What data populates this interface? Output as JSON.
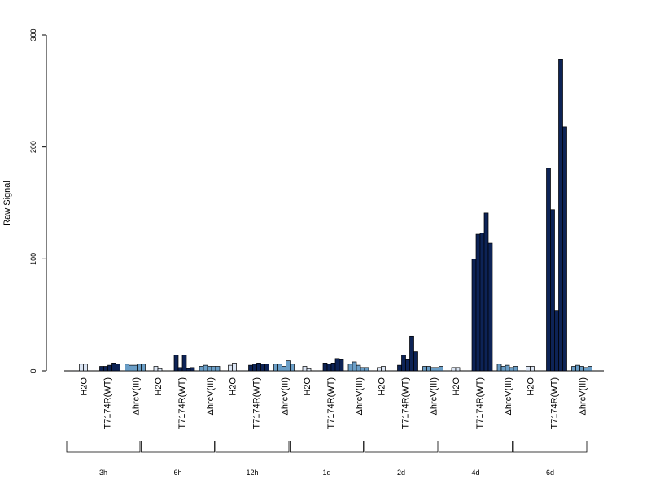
{
  "chart_data": {
    "type": "bar",
    "ylabel": "Raw Signal",
    "ylim": [
      0,
      300
    ],
    "yticks": [
      "0",
      "100",
      "200",
      "300"
    ],
    "group_labels": [
      "H2O",
      "T7174R(WT)",
      "ΔhrcV(III)"
    ],
    "timepoints": [
      {
        "label": "3h",
        "groups": [
          {
            "name": "H2O",
            "color": "#dce6f5",
            "values": [
              6,
              6
            ]
          },
          {
            "name": "T7174R(WT)",
            "color": "#0d2356",
            "values": [
              4,
              4,
              5,
              7,
              6
            ]
          },
          {
            "name": "ΔhrcV(III)",
            "color": "#6a9ec7",
            "values": [
              6,
              5,
              5,
              6,
              6
            ]
          }
        ]
      },
      {
        "label": "6h",
        "groups": [
          {
            "name": "H2O",
            "color": "#dce6f5",
            "values": [
              4,
              2
            ]
          },
          {
            "name": "T7174R(WT)",
            "color": "#0d2356",
            "values": [
              14,
              3,
              14,
              2,
              3
            ]
          },
          {
            "name": "ΔhrcV(III)",
            "color": "#6a9ec7",
            "values": [
              4,
              5,
              4,
              4,
              4
            ]
          }
        ]
      },
      {
        "label": "12h",
        "groups": [
          {
            "name": "H2O",
            "color": "#dce6f5",
            "values": [
              5,
              7
            ]
          },
          {
            "name": "T7174R(WT)",
            "color": "#0d2356",
            "values": [
              5,
              6,
              7,
              6,
              6
            ]
          },
          {
            "name": "ΔhrcV(III)",
            "color": "#6a9ec7",
            "values": [
              6,
              6,
              4,
              9,
              6
            ]
          }
        ]
      },
      {
        "label": "1d",
        "groups": [
          {
            "name": "H2O",
            "color": "#dce6f5",
            "values": [
              4,
              2
            ]
          },
          {
            "name": "T7174R(WT)",
            "color": "#0d2356",
            "values": [
              7,
              6,
              7,
              11,
              10
            ]
          },
          {
            "name": "ΔhrcV(III)",
            "color": "#6a9ec7",
            "values": [
              6,
              8,
              5,
              3,
              3
            ]
          }
        ]
      },
      {
        "label": "2d",
        "groups": [
          {
            "name": "H2O",
            "color": "#dce6f5",
            "values": [
              3,
              4
            ]
          },
          {
            "name": "T7174R(WT)",
            "color": "#0d2356",
            "values": [
              5,
              14,
              10,
              31,
              17
            ]
          },
          {
            "name": "ΔhrcV(III)",
            "color": "#6a9ec7",
            "values": [
              4,
              4,
              3,
              3,
              4
            ]
          }
        ]
      },
      {
        "label": "4d",
        "groups": [
          {
            "name": "H2O",
            "color": "#dce6f5",
            "values": [
              3,
              3
            ]
          },
          {
            "name": "T7174R(WT)",
            "color": "#0d2356",
            "values": [
              100,
              122,
              123,
              141,
              114
            ]
          },
          {
            "name": "ΔhrcV(III)",
            "color": "#6a9ec7",
            "values": [
              6,
              4,
              5,
              3,
              4
            ]
          }
        ]
      },
      {
        "label": "6d",
        "groups": [
          {
            "name": "H2O",
            "color": "#dce6f5",
            "values": [
              4,
              4
            ]
          },
          {
            "name": "T7174R(WT)",
            "color": "#0d2356",
            "values": [
              181,
              144,
              54,
              278,
              218
            ]
          },
          {
            "name": "ΔhrcV(III)",
            "color": "#6a9ec7",
            "values": [
              4,
              5,
              4,
              3,
              4
            ]
          }
        ]
      }
    ]
  }
}
